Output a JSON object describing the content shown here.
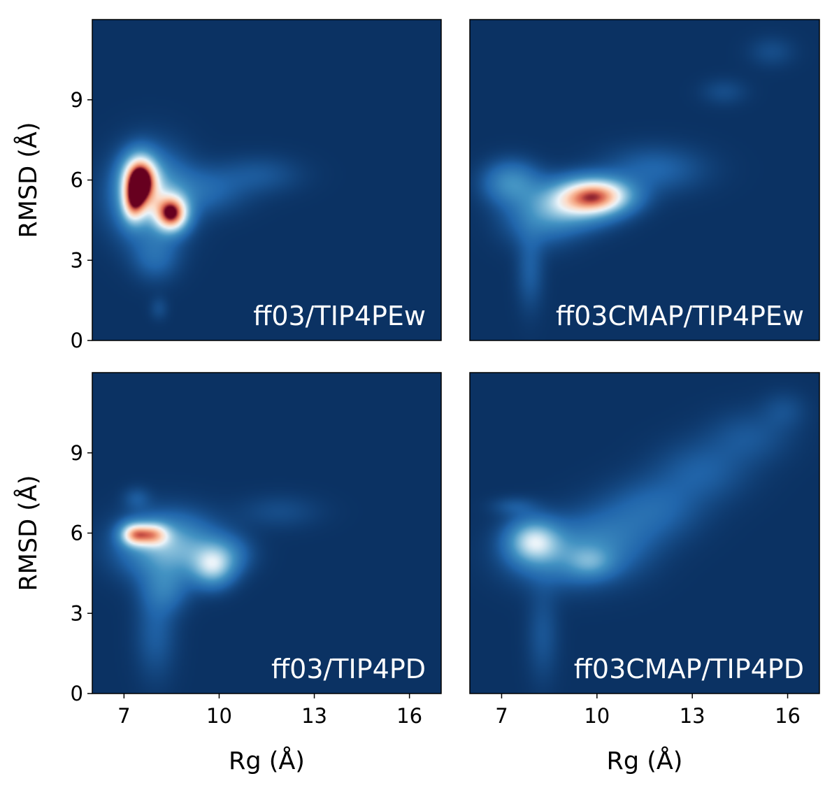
{
  "figure": {
    "background": "#ffffff",
    "panel_background": "#0b3263",
    "colormap": "RdBu_r"
  },
  "chart_data": [
    {
      "type": "heatmap",
      "title": "ff03/TIP4PEw",
      "xlabel": "",
      "ylabel": "RMSD (Å)",
      "xlim": [
        6,
        17
      ],
      "ylim": [
        0,
        12
      ],
      "xticks": [
        "7",
        "10",
        "13",
        "16"
      ],
      "yticks": [
        "0",
        "3",
        "6",
        "9"
      ],
      "show_xticks": false,
      "show_yticks": true,
      "density_blobs": [
        {
          "x": 7.5,
          "y": 6.0,
          "sx": 0.35,
          "sy": 0.6,
          "w": 1.0
        },
        {
          "x": 8.5,
          "y": 4.75,
          "sx": 0.35,
          "sy": 0.45,
          "w": 0.85
        },
        {
          "x": 7.3,
          "y": 5.1,
          "sx": 0.25,
          "sy": 0.5,
          "w": 0.5
        },
        {
          "x": 7.8,
          "y": 5.4,
          "sx": 0.8,
          "sy": 1.1,
          "w": 0.35
        },
        {
          "x": 8.0,
          "y": 3.1,
          "sx": 0.5,
          "sy": 0.6,
          "w": 0.12
        },
        {
          "x": 9.5,
          "y": 5.6,
          "sx": 0.9,
          "sy": 0.6,
          "w": 0.12
        },
        {
          "x": 11.3,
          "y": 6.2,
          "sx": 0.9,
          "sy": 0.5,
          "w": 0.08
        },
        {
          "x": 8.1,
          "y": 1.2,
          "sx": 0.2,
          "sy": 0.3,
          "w": 0.06
        }
      ]
    },
    {
      "type": "heatmap",
      "title": "ff03CMAP/TIP4PEw",
      "xlabel": "",
      "ylabel": "",
      "xlim": [
        6,
        17
      ],
      "ylim": [
        0,
        12
      ],
      "xticks": [
        "7",
        "10",
        "13",
        "16"
      ],
      "yticks": [
        "0",
        "3",
        "6",
        "9"
      ],
      "show_xticks": false,
      "show_yticks": false,
      "density_blobs": [
        {
          "x": 10.0,
          "y": 5.4,
          "sx": 0.75,
          "sy": 0.45,
          "w": 0.72
        },
        {
          "x": 9.2,
          "y": 5.1,
          "sx": 0.9,
          "sy": 0.6,
          "w": 0.35
        },
        {
          "x": 7.3,
          "y": 5.9,
          "sx": 0.6,
          "sy": 0.55,
          "w": 0.25
        },
        {
          "x": 8.2,
          "y": 4.5,
          "sx": 0.8,
          "sy": 0.7,
          "w": 0.15
        },
        {
          "x": 11.8,
          "y": 6.4,
          "sx": 1.1,
          "sy": 0.6,
          "w": 0.12
        },
        {
          "x": 7.9,
          "y": 2.6,
          "sx": 0.3,
          "sy": 1.0,
          "w": 0.1
        },
        {
          "x": 14.0,
          "y": 9.3,
          "sx": 0.5,
          "sy": 0.35,
          "w": 0.06
        },
        {
          "x": 15.5,
          "y": 10.8,
          "sx": 0.5,
          "sy": 0.4,
          "w": 0.06
        }
      ]
    },
    {
      "type": "heatmap",
      "title": "ff03/TIP4PD",
      "xlabel": "Rg (Å)",
      "ylabel": "RMSD (Å)",
      "xlim": [
        6,
        17
      ],
      "ylim": [
        0,
        12
      ],
      "xticks": [
        "7",
        "10",
        "13",
        "16"
      ],
      "yticks": [
        "0",
        "3",
        "6",
        "9"
      ],
      "show_xticks": true,
      "show_yticks": true,
      "density_blobs": [
        {
          "x": 7.3,
          "y": 5.95,
          "sx": 0.3,
          "sy": 0.3,
          "w": 0.55
        },
        {
          "x": 7.9,
          "y": 5.95,
          "sx": 0.35,
          "sy": 0.3,
          "w": 0.5
        },
        {
          "x": 8.4,
          "y": 5.5,
          "sx": 1.0,
          "sy": 0.8,
          "w": 0.38
        },
        {
          "x": 9.8,
          "y": 4.7,
          "sx": 0.45,
          "sy": 0.5,
          "w": 0.35
        },
        {
          "x": 10.1,
          "y": 5.2,
          "sx": 0.6,
          "sy": 0.5,
          "w": 0.18
        },
        {
          "x": 8.3,
          "y": 3.9,
          "sx": 0.5,
          "sy": 0.6,
          "w": 0.15
        },
        {
          "x": 8.0,
          "y": 2.3,
          "sx": 0.45,
          "sy": 1.2,
          "w": 0.1
        },
        {
          "x": 7.4,
          "y": 7.3,
          "sx": 0.3,
          "sy": 0.3,
          "w": 0.08
        },
        {
          "x": 11.9,
          "y": 6.8,
          "sx": 0.9,
          "sy": 0.45,
          "w": 0.06
        }
      ]
    },
    {
      "type": "heatmap",
      "title": "ff03CMAP/TIP4PD",
      "xlabel": "Rg (Å)",
      "ylabel": "",
      "xlim": [
        6,
        17
      ],
      "ylim": [
        0,
        12
      ],
      "xticks": [
        "7",
        "10",
        "13",
        "16"
      ],
      "yticks": [
        "0",
        "3",
        "6",
        "9"
      ],
      "show_xticks": true,
      "show_yticks": false,
      "density_blobs": [
        {
          "x": 8.0,
          "y": 5.7,
          "sx": 0.55,
          "sy": 0.55,
          "w": 0.42
        },
        {
          "x": 8.8,
          "y": 5.2,
          "sx": 1.1,
          "sy": 0.8,
          "w": 0.2
        },
        {
          "x": 9.8,
          "y": 4.9,
          "sx": 0.5,
          "sy": 0.4,
          "w": 0.18
        },
        {
          "x": 10.4,
          "y": 5.7,
          "sx": 1.0,
          "sy": 0.9,
          "w": 0.14
        },
        {
          "x": 11.8,
          "y": 6.9,
          "sx": 1.0,
          "sy": 0.8,
          "w": 0.12
        },
        {
          "x": 13.3,
          "y": 8.3,
          "sx": 1.0,
          "sy": 0.8,
          "w": 0.1
        },
        {
          "x": 14.8,
          "y": 9.6,
          "sx": 0.9,
          "sy": 0.7,
          "w": 0.08
        },
        {
          "x": 15.9,
          "y": 10.6,
          "sx": 0.5,
          "sy": 0.5,
          "w": 0.06
        },
        {
          "x": 7.4,
          "y": 7.0,
          "sx": 0.5,
          "sy": 0.25,
          "w": 0.08
        },
        {
          "x": 8.3,
          "y": 2.2,
          "sx": 0.35,
          "sy": 1.2,
          "w": 0.08
        }
      ]
    }
  ]
}
